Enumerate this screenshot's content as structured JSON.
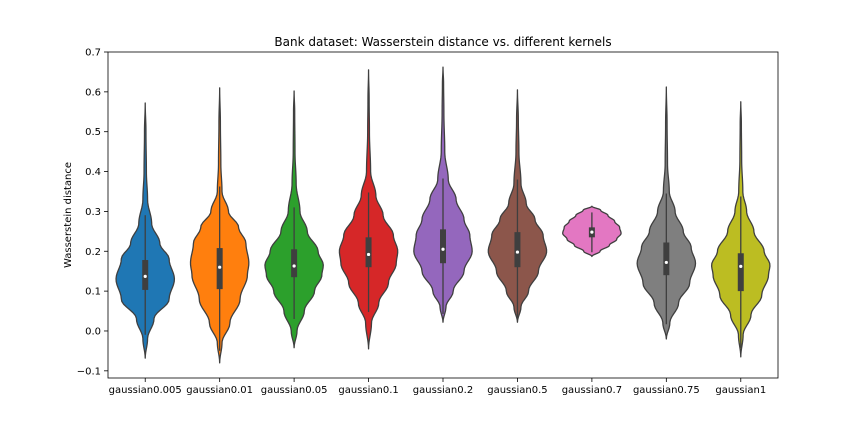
{
  "chart_data": {
    "type": "violin",
    "title": "Bank dataset: Wasserstein distance vs. different kernels",
    "xlabel": "",
    "ylabel": "Wasserstein distance",
    "ylim": [
      -0.118,
      0.7
    ],
    "yticks": [
      -0.1,
      0.0,
      0.1,
      0.2,
      0.3,
      0.4,
      0.5,
      0.6,
      0.7
    ],
    "ytick_labels": [
      "−0.1",
      "0.0",
      "0.1",
      "0.2",
      "0.3",
      "0.4",
      "0.5",
      "0.6",
      "0.7"
    ],
    "grid": false,
    "categories": [
      "gaussian0.005",
      "gaussian0.01",
      "gaussian0.05",
      "gaussian0.1",
      "gaussian0.2",
      "gaussian0.5",
      "gaussian0.7",
      "gaussian0.75",
      "gaussian1"
    ],
    "series": [
      {
        "color": "#1f77b4",
        "min": -0.068,
        "max": 0.572,
        "q1": 0.103,
        "median": 0.137,
        "q3": 0.178,
        "profile": [
          [
            -0.068,
            0.0
          ],
          [
            -0.02,
            0.08
          ],
          [
            0.03,
            0.3
          ],
          [
            0.08,
            0.82
          ],
          [
            0.13,
            1.0
          ],
          [
            0.18,
            0.82
          ],
          [
            0.22,
            0.5
          ],
          [
            0.27,
            0.22
          ],
          [
            0.33,
            0.08
          ],
          [
            0.4,
            0.04
          ],
          [
            0.5,
            0.025
          ],
          [
            0.572,
            0.0
          ]
        ]
      },
      {
        "color": "#ff7f0e",
        "min": -0.08,
        "max": 0.61,
        "q1": 0.105,
        "median": 0.16,
        "q3": 0.208,
        "profile": [
          [
            -0.08,
            0.0
          ],
          [
            -0.03,
            0.08
          ],
          [
            0.02,
            0.35
          ],
          [
            0.08,
            0.7
          ],
          [
            0.14,
            0.95
          ],
          [
            0.17,
            1.0
          ],
          [
            0.22,
            0.9
          ],
          [
            0.26,
            0.65
          ],
          [
            0.3,
            0.3
          ],
          [
            0.35,
            0.08
          ],
          [
            0.42,
            0.04
          ],
          [
            0.52,
            0.025
          ],
          [
            0.61,
            0.0
          ]
        ]
      },
      {
        "color": "#2ca02c",
        "min": -0.042,
        "max": 0.602,
        "q1": 0.135,
        "median": 0.163,
        "q3": 0.205,
        "profile": [
          [
            -0.042,
            0.0
          ],
          [
            0.0,
            0.1
          ],
          [
            0.05,
            0.35
          ],
          [
            0.1,
            0.7
          ],
          [
            0.14,
            0.95
          ],
          [
            0.165,
            1.0
          ],
          [
            0.2,
            0.82
          ],
          [
            0.25,
            0.45
          ],
          [
            0.3,
            0.2
          ],
          [
            0.37,
            0.07
          ],
          [
            0.45,
            0.03
          ],
          [
            0.55,
            0.02
          ],
          [
            0.602,
            0.0
          ]
        ]
      },
      {
        "color": "#d62728",
        "min": -0.045,
        "max": 0.655,
        "q1": 0.16,
        "median": 0.192,
        "q3": 0.235,
        "profile": [
          [
            -0.045,
            0.0
          ],
          [
            0.02,
            0.1
          ],
          [
            0.07,
            0.35
          ],
          [
            0.12,
            0.68
          ],
          [
            0.17,
            0.95
          ],
          [
            0.2,
            1.0
          ],
          [
            0.24,
            0.85
          ],
          [
            0.29,
            0.5
          ],
          [
            0.34,
            0.25
          ],
          [
            0.4,
            0.07
          ],
          [
            0.5,
            0.03
          ],
          [
            0.58,
            0.02
          ],
          [
            0.655,
            0.0
          ]
        ]
      },
      {
        "color": "#9467bd",
        "min": 0.022,
        "max": 0.662,
        "q1": 0.17,
        "median": 0.205,
        "q3": 0.255,
        "profile": [
          [
            0.022,
            0.0
          ],
          [
            0.06,
            0.1
          ],
          [
            0.1,
            0.35
          ],
          [
            0.15,
            0.72
          ],
          [
            0.2,
            1.0
          ],
          [
            0.24,
            0.92
          ],
          [
            0.28,
            0.72
          ],
          [
            0.33,
            0.45
          ],
          [
            0.38,
            0.18
          ],
          [
            0.45,
            0.06
          ],
          [
            0.55,
            0.03
          ],
          [
            0.62,
            0.02
          ],
          [
            0.662,
            0.0
          ]
        ]
      },
      {
        "color": "#8c564b",
        "min": 0.022,
        "max": 0.605,
        "q1": 0.16,
        "median": 0.198,
        "q3": 0.248,
        "profile": [
          [
            0.022,
            0.0
          ],
          [
            0.06,
            0.12
          ],
          [
            0.1,
            0.38
          ],
          [
            0.15,
            0.72
          ],
          [
            0.2,
            1.0
          ],
          [
            0.24,
            0.88
          ],
          [
            0.28,
            0.6
          ],
          [
            0.32,
            0.3
          ],
          [
            0.37,
            0.12
          ],
          [
            0.45,
            0.05
          ],
          [
            0.53,
            0.03
          ],
          [
            0.605,
            0.0
          ]
        ]
      },
      {
        "color": "#e377c2",
        "min": 0.187,
        "max": 0.313,
        "q1": 0.235,
        "median": 0.248,
        "q3": 0.26,
        "profile": [
          [
            0.187,
            0.0
          ],
          [
            0.2,
            0.28
          ],
          [
            0.215,
            0.6
          ],
          [
            0.23,
            0.85
          ],
          [
            0.245,
            1.0
          ],
          [
            0.26,
            0.95
          ],
          [
            0.275,
            0.78
          ],
          [
            0.29,
            0.55
          ],
          [
            0.303,
            0.3
          ],
          [
            0.313,
            0.0
          ]
        ]
      },
      {
        "color": "#7f7f7f",
        "min": -0.02,
        "max": 0.612,
        "q1": 0.14,
        "median": 0.172,
        "q3": 0.222,
        "profile": [
          [
            -0.02,
            0.0
          ],
          [
            0.02,
            0.12
          ],
          [
            0.07,
            0.42
          ],
          [
            0.12,
            0.8
          ],
          [
            0.17,
            1.0
          ],
          [
            0.21,
            0.85
          ],
          [
            0.25,
            0.58
          ],
          [
            0.3,
            0.3
          ],
          [
            0.35,
            0.1
          ],
          [
            0.42,
            0.04
          ],
          [
            0.52,
            0.025
          ],
          [
            0.612,
            0.0
          ]
        ]
      },
      {
        "color": "#bcbd22",
        "min": -0.065,
        "max": 0.575,
        "q1": 0.1,
        "median": 0.162,
        "q3": 0.195,
        "profile": [
          [
            -0.065,
            0.0
          ],
          [
            -0.01,
            0.08
          ],
          [
            0.04,
            0.35
          ],
          [
            0.09,
            0.72
          ],
          [
            0.14,
            0.95
          ],
          [
            0.165,
            1.0
          ],
          [
            0.2,
            0.8
          ],
          [
            0.25,
            0.45
          ],
          [
            0.3,
            0.2
          ],
          [
            0.35,
            0.07
          ],
          [
            0.43,
            0.03
          ],
          [
            0.52,
            0.02
          ],
          [
            0.575,
            0.0
          ]
        ]
      }
    ]
  }
}
